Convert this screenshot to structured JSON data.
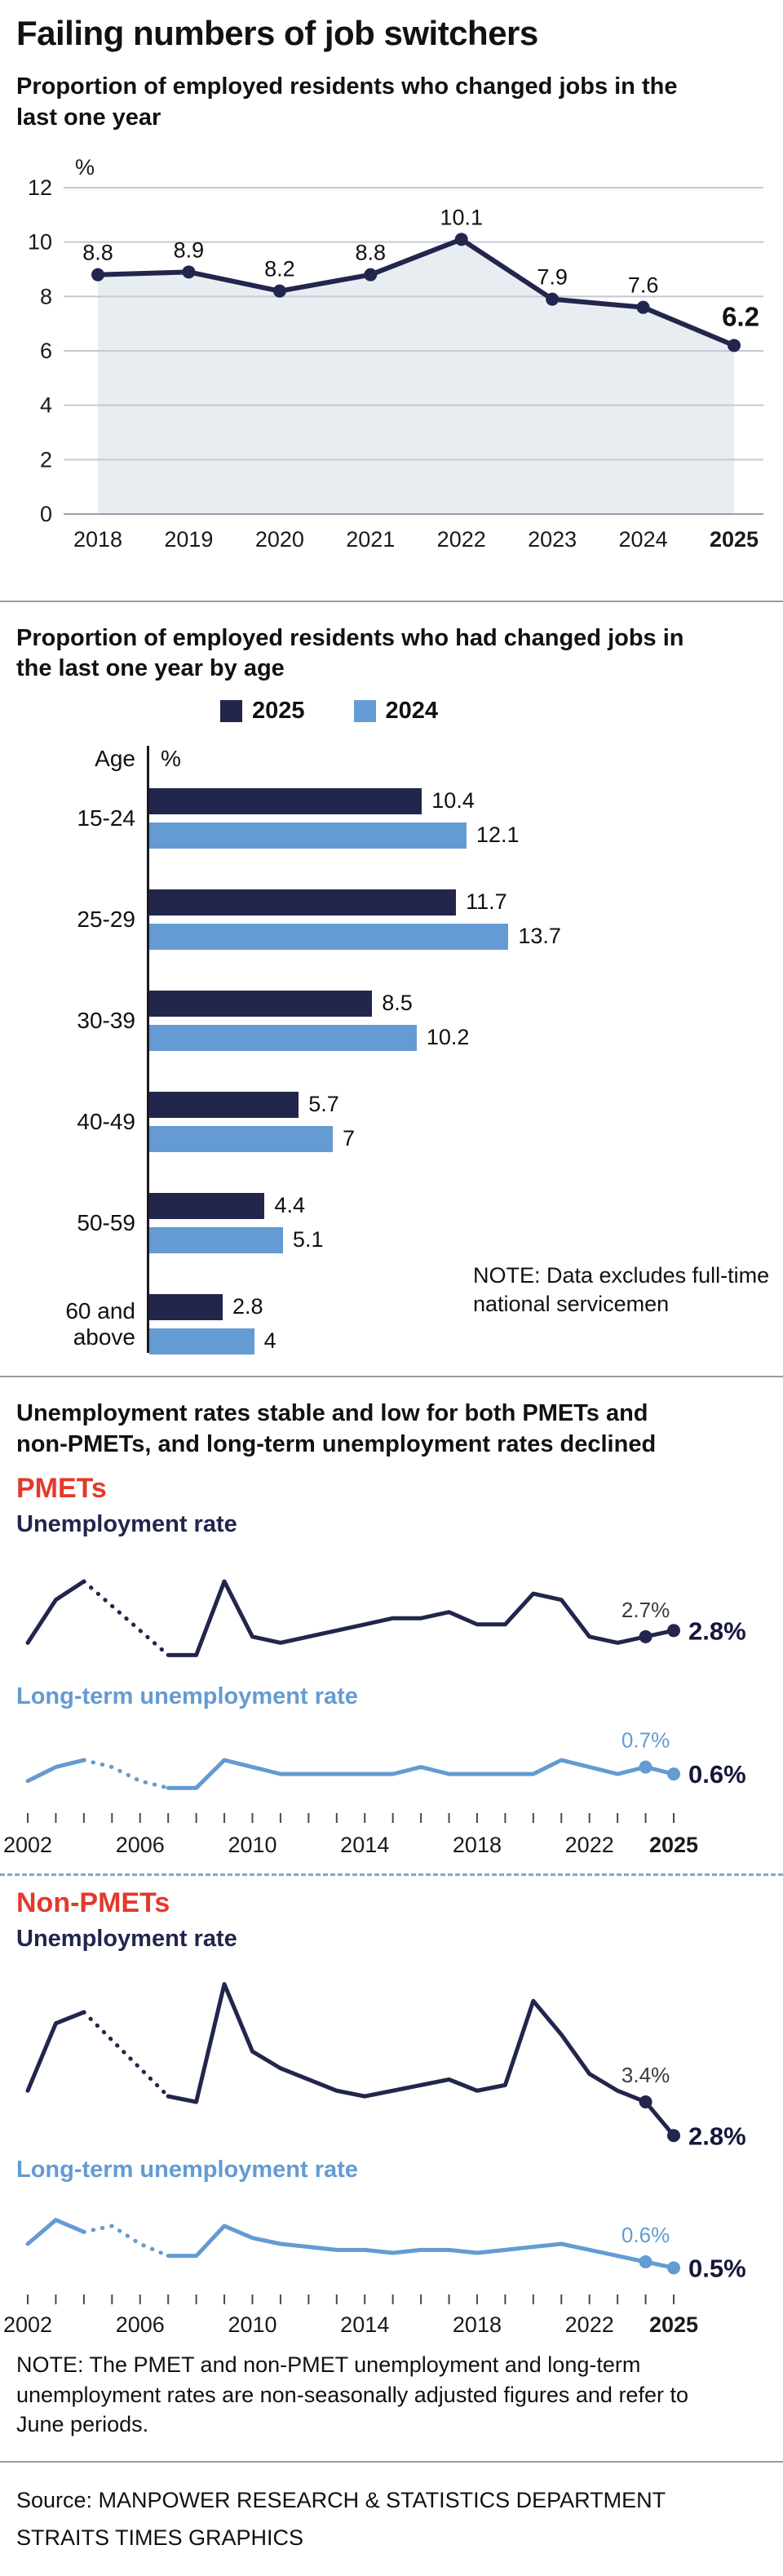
{
  "page": {
    "title": "Failing numbers of job switchers",
    "note_age": "NOTE: Data excludes full-time national servicemen",
    "note_bottom": "NOTE: The PMET and non-PMET unemployment and long-term unemployment rates are non-seasonally adjusted figures and refer to June periods.",
    "source_line1": "Source: MANPOWER RESEARCH & STATISTICS DEPARTMENT",
    "source_line2": "STRAITS TIMES GRAPHICS"
  },
  "colors": {
    "navy": "#22264d",
    "blue": "#649bd2",
    "red": "#e23a2e",
    "area": "#e8edf2",
    "grid": "#c4c9d3",
    "axis_zero": "#9aa0aa",
    "gray_label": "#3c3c3c",
    "text": "#111111"
  },
  "sections": {
    "job_switchers": {
      "heading": "Proportion of employed residents who changed jobs in the last one year"
    },
    "by_age": {
      "heading": "Proportion of employed residents who had changed jobs in the last one year by age",
      "legend": [
        {
          "label": "2025"
        },
        {
          "label": "2024"
        }
      ],
      "axis_left": "Age",
      "axis_unit": "%"
    },
    "unemployment": {
      "heading": "Unemployment rates stable and low for both PMETs and non-PMETs, and long-term unemployment rates declined",
      "pmet_title": "PMETs",
      "nonpmet_title": "Non-PMETs",
      "unemp_label": "Unemployment rate",
      "lt_label": "Long-term unemployment rate"
    }
  },
  "chart_data": [
    {
      "id": "job_switchers",
      "type": "area",
      "title": "Proportion of employed residents who changed jobs in the last one year",
      "ylabel": "%",
      "ylim": [
        0,
        12
      ],
      "yticks": [
        0,
        2,
        4,
        6,
        8,
        10,
        12
      ],
      "categories": [
        "2018",
        "2019",
        "2020",
        "2021",
        "2022",
        "2023",
        "2024",
        "2025"
      ],
      "values": [
        8.8,
        8.9,
        8.2,
        8.8,
        10.1,
        7.9,
        7.6,
        6.2
      ]
    },
    {
      "id": "by_age",
      "type": "bar",
      "orientation": "horizontal",
      "title": "Proportion of employed residents who had changed jobs in the last one year by age",
      "unit": "%",
      "xlim": [
        0,
        14
      ],
      "categories": [
        "15-24",
        "25-29",
        "30-39",
        "40-49",
        "50-59",
        "60 and above"
      ],
      "series": [
        {
          "name": "2025",
          "values": [
            10.4,
            11.7,
            8.5,
            5.7,
            4.4,
            2.8
          ]
        },
        {
          "name": "2024",
          "values": [
            12.1,
            13.7,
            10.2,
            7,
            5.1,
            4
          ]
        }
      ],
      "note": "NOTE: Data excludes full-time national servicemen"
    },
    {
      "id": "pmet_unemployment",
      "type": "line",
      "group": "PMETs",
      "name": "Unemployment rate",
      "x": [
        2002,
        2003,
        2004,
        2005,
        2006,
        2007,
        2008,
        2009,
        2010,
        2011,
        2012,
        2013,
        2014,
        2015,
        2016,
        2017,
        2018,
        2019,
        2020,
        2021,
        2022,
        2023,
        2024,
        2025
      ],
      "values": [
        2.6,
        3.3,
        3.6,
        3.2,
        2.8,
        2.4,
        2.4,
        3.6,
        2.7,
        2.6,
        2.7,
        2.8,
        2.9,
        3.0,
        3.0,
        3.1,
        2.9,
        2.9,
        3.4,
        3.3,
        2.7,
        2.6,
        2.7,
        2.8
      ],
      "ylim": [
        2.1,
        3.8
      ],
      "dotted_from": 2004,
      "dotted_to": 2007,
      "color": "#22264d",
      "prev_label": "2.7%",
      "prev_label_color": "#3c3c3c",
      "end_label": "2.8%",
      "end_label_color": "#13173a",
      "axis_labels": [
        2002,
        2006,
        2010,
        2014,
        2018,
        2022,
        2025
      ]
    },
    {
      "id": "pmet_longterm",
      "type": "line",
      "group": "PMETs",
      "name": "Long-term unemployment rate",
      "x": [
        2002,
        2003,
        2004,
        2005,
        2006,
        2007,
        2008,
        2009,
        2010,
        2011,
        2012,
        2013,
        2014,
        2015,
        2016,
        2017,
        2018,
        2019,
        2020,
        2021,
        2022,
        2023,
        2024,
        2025
      ],
      "values": [
        0.5,
        0.7,
        0.8,
        0.7,
        0.5,
        0.4,
        0.4,
        0.8,
        0.7,
        0.6,
        0.6,
        0.6,
        0.6,
        0.6,
        0.7,
        0.6,
        0.6,
        0.6,
        0.6,
        0.8,
        0.7,
        0.6,
        0.7,
        0.6
      ],
      "ylim": [
        0.25,
        1.0
      ],
      "dotted_from": 2004,
      "dotted_to": 2007,
      "color": "#649bd2",
      "prev_label": "0.7%",
      "prev_label_color": "#649bd2",
      "end_label": "0.6%",
      "end_label_color": "#13173a",
      "axis_labels": [
        2002,
        2006,
        2010,
        2014,
        2018,
        2022,
        2025
      ]
    },
    {
      "id": "nonpmet_unemployment",
      "type": "line",
      "group": "Non-PMETs",
      "name": "Unemployment rate",
      "x": [
        2002,
        2003,
        2004,
        2005,
        2006,
        2007,
        2008,
        2009,
        2010,
        2011,
        2012,
        2013,
        2014,
        2015,
        2016,
        2017,
        2018,
        2019,
        2020,
        2021,
        2022,
        2023,
        2024,
        2025
      ],
      "values": [
        3.6,
        4.8,
        5.0,
        4.5,
        4.0,
        3.5,
        3.4,
        5.5,
        4.3,
        4.0,
        3.8,
        3.6,
        3.5,
        3.6,
        3.7,
        3.8,
        3.6,
        3.7,
        5.2,
        4.6,
        3.9,
        3.6,
        3.4,
        2.8
      ],
      "ylim": [
        2.6,
        5.8
      ],
      "dotted_from": 2004,
      "dotted_to": 2007,
      "color": "#22264d",
      "prev_label": "3.4%",
      "prev_label_color": "#3c3c3c",
      "end_label": "2.8%",
      "end_label_color": "#13173a",
      "axis_labels": [
        2002,
        2006,
        2010,
        2014,
        2018,
        2022,
        2025
      ]
    },
    {
      "id": "nonpmet_longterm",
      "type": "line",
      "group": "Non-PMETs",
      "name": "Long-term unemployment rate",
      "x": [
        2002,
        2003,
        2004,
        2005,
        2006,
        2007,
        2008,
        2009,
        2010,
        2011,
        2012,
        2013,
        2014,
        2015,
        2016,
        2017,
        2018,
        2019,
        2020,
        2021,
        2022,
        2023,
        2024,
        2025
      ],
      "values": [
        0.9,
        1.3,
        1.1,
        1.2,
        0.9,
        0.7,
        0.7,
        1.2,
        1.0,
        0.9,
        0.85,
        0.8,
        0.8,
        0.75,
        0.8,
        0.8,
        0.75,
        0.8,
        0.85,
        0.9,
        0.8,
        0.7,
        0.6,
        0.5
      ],
      "ylim": [
        0.3,
        1.5
      ],
      "dotted_from": 2004,
      "dotted_to": 2007,
      "color": "#649bd2",
      "prev_label": "0.6%",
      "prev_label_color": "#649bd2",
      "end_label": "0.5%",
      "end_label_color": "#13173a",
      "axis_labels": [
        2002,
        2006,
        2010,
        2014,
        2018,
        2022,
        2025
      ]
    }
  ]
}
